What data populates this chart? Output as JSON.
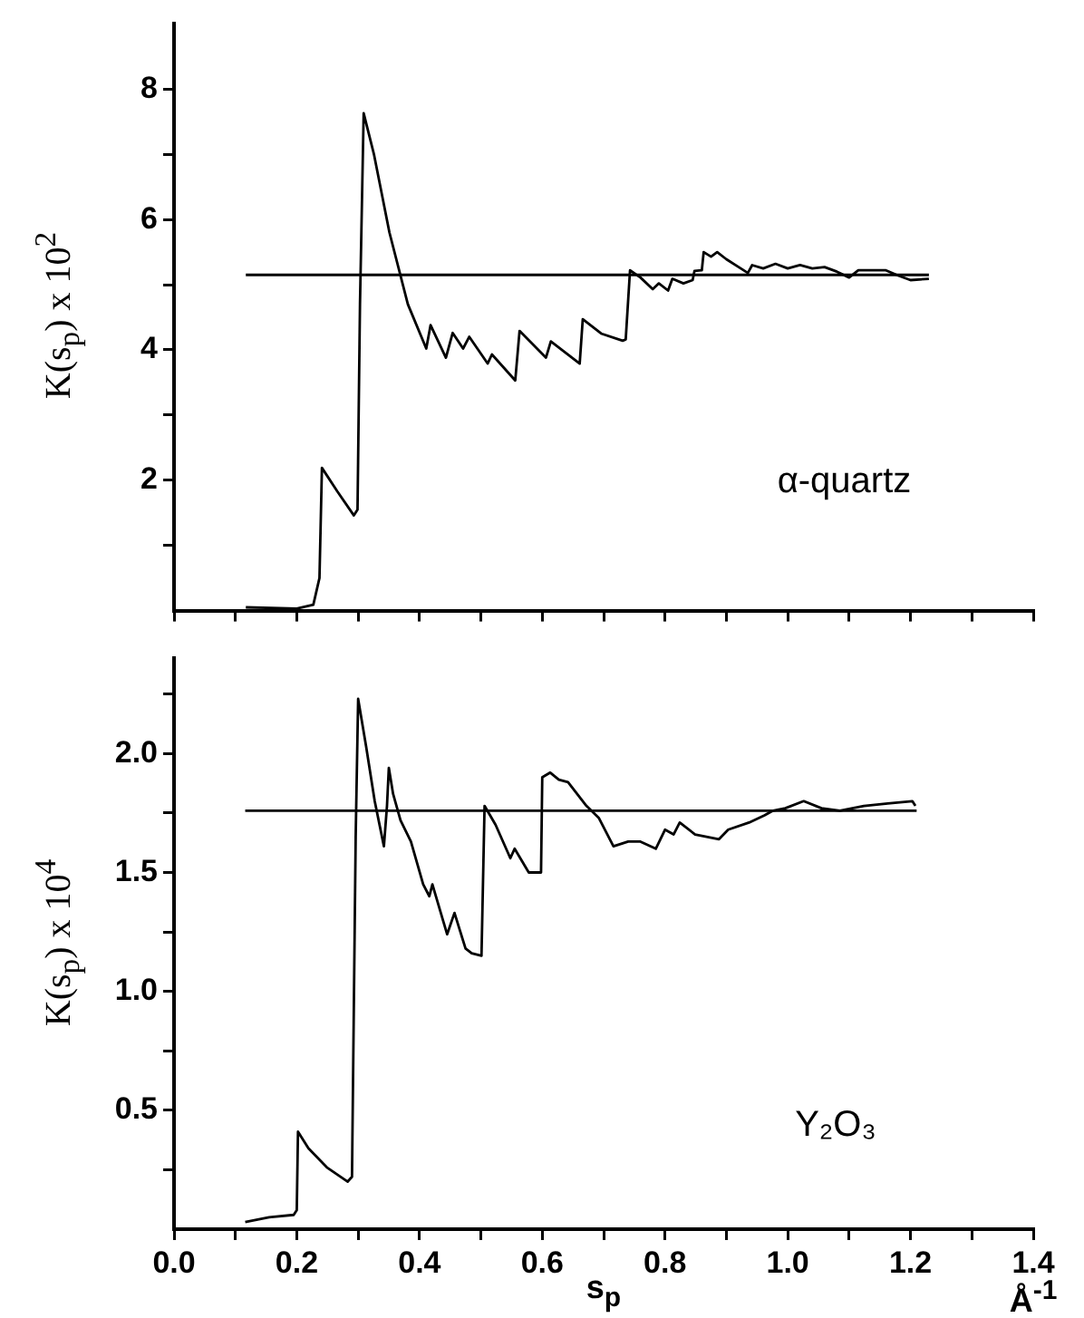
{
  "chart_data": [
    {
      "type": "line",
      "ylabel": "K(s$_{p}$) x 10$^{2}$",
      "annotations": [
        "α-quartz"
      ],
      "xlim": [
        0,
        1.4
      ],
      "ylim": [
        0,
        9
      ],
      "xticks": [
        {
          "value": 0,
          "label": null
        },
        {
          "value": 0.1,
          "label": null
        },
        {
          "value": 0.2,
          "label": null
        },
        {
          "value": 0.3,
          "label": null
        },
        {
          "value": 0.4,
          "label": null
        },
        {
          "value": 0.5,
          "label": null
        },
        {
          "value": 0.6,
          "label": null
        },
        {
          "value": 0.7,
          "label": null
        },
        {
          "value": 0.8,
          "label": null
        },
        {
          "value": 0.9,
          "label": null
        },
        {
          "value": 1.0,
          "label": null
        },
        {
          "value": 1.1,
          "label": null
        },
        {
          "value": 1.2,
          "label": null
        },
        {
          "value": 1.3,
          "label": null
        },
        {
          "value": 1.4,
          "label": null
        }
      ],
      "yticks": [
        {
          "value": 1,
          "label": null
        },
        2,
        {
          "value": 3,
          "label": null
        },
        4,
        {
          "value": 5,
          "label": null
        },
        6,
        {
          "value": 7,
          "label": null
        },
        8
      ],
      "tick_labels": "y",
      "grid": false,
      "legend": false,
      "marker": "none",
      "line_style": "solid",
      "series": [
        {
          "color": "#000000",
          "x": [
            0.117,
            0.2,
            0.227,
            0.237,
            0.241,
            0.266,
            0.293,
            0.299,
            0.303,
            0.309,
            0.326,
            0.351,
            0.381,
            0.411,
            0.418,
            0.443,
            0.454,
            0.471,
            0.481,
            0.511,
            0.518,
            0.556,
            0.563,
            0.606,
            0.614,
            0.661,
            0.666,
            0.696,
            0.731,
            0.736,
            0.743,
            0.76,
            0.78,
            0.79,
            0.805,
            0.812,
            0.83,
            0.845,
            0.848,
            0.86,
            0.863,
            0.875,
            0.885,
            0.9,
            0.92,
            0.935,
            0.942,
            0.96,
            0.98,
            1.0,
            1.02,
            1.04,
            1.06,
            1.08,
            1.1,
            1.115,
            1.16,
            1.18,
            1.2,
            1.23
          ],
          "values": [
            0.05,
            0.03,
            0.09,
            0.5,
            2.19,
            1.83,
            1.46,
            1.55,
            4.7,
            7.63,
            6.99,
            5.8,
            4.7,
            4.02,
            4.38,
            3.88,
            4.26,
            4.02,
            4.2,
            3.79,
            3.93,
            3.53,
            4.29,
            3.88,
            4.13,
            3.79,
            4.47,
            4.25,
            4.14,
            4.16,
            5.22,
            5.11,
            4.93,
            5.02,
            4.91,
            5.09,
            5.02,
            5.07,
            5.21,
            5.22,
            5.5,
            5.43,
            5.5,
            5.39,
            5.27,
            5.18,
            5.3,
            5.25,
            5.32,
            5.25,
            5.3,
            5.25,
            5.27,
            5.2,
            5.11,
            5.22,
            5.22,
            5.14,
            5.07,
            5.09
          ]
        },
        {
          "color": "#000000",
          "x": [
            0.117,
            1.23
          ],
          "values": [
            5.15,
            5.15
          ]
        }
      ]
    },
    {
      "type": "line",
      "xlabel": "s$_{p}$",
      "ylabel": "K(s$_{p}$) x 10$^{4}$",
      "annotations": [
        "Y₂O₃",
        "Å$^{-1}$"
      ],
      "xlim": [
        0,
        1.4
      ],
      "ylim": [
        0,
        2.4
      ],
      "xticks": [
        {
          "value": 0,
          "label": "0.0"
        },
        {
          "value": 0.1,
          "label": null
        },
        0.2,
        {
          "value": 0.3,
          "label": null
        },
        0.4,
        {
          "value": 0.5,
          "label": null
        },
        0.6,
        {
          "value": 0.7,
          "label": null
        },
        0.8,
        {
          "value": 0.9,
          "label": null
        },
        {
          "value": 1.0,
          "label": "1.0"
        },
        {
          "value": 1.1,
          "label": null
        },
        1.2,
        {
          "value": 1.3,
          "label": null
        },
        1.4
      ],
      "yticks": [
        {
          "value": 0.25,
          "label": null
        },
        0.5,
        {
          "value": 0.75,
          "label": null
        },
        {
          "value": 1.0,
          "label": "1.0"
        },
        {
          "value": 1.25,
          "label": null
        },
        1.5,
        {
          "value": 1.75,
          "label": null
        },
        {
          "value": 2.0,
          "label": "2.0"
        },
        {
          "value": 2.25,
          "label": null
        }
      ],
      "grid": false,
      "legend": false,
      "marker": "none",
      "line_style": "solid",
      "series": [
        {
          "color": "#000000",
          "x": [
            0.116,
            0.155,
            0.195,
            0.2,
            0.202,
            0.219,
            0.249,
            0.283,
            0.29,
            0.296,
            0.3,
            0.313,
            0.327,
            0.342,
            0.347,
            0.35,
            0.357,
            0.369,
            0.386,
            0.406,
            0.416,
            0.421,
            0.445,
            0.457,
            0.475,
            0.485,
            0.501,
            0.506,
            0.524,
            0.548,
            0.555,
            0.578,
            0.598,
            0.6,
            0.613,
            0.627,
            0.642,
            0.672,
            0.692,
            0.716,
            0.74,
            0.76,
            0.785,
            0.8,
            0.814,
            0.824,
            0.849,
            0.888,
            0.903,
            0.937,
            0.962,
            0.976,
            0.996,
            1.026,
            1.055,
            1.085,
            1.124,
            1.163,
            1.203,
            1.208
          ],
          "values": [
            0.03,
            0.05,
            0.06,
            0.08,
            0.41,
            0.34,
            0.26,
            0.2,
            0.22,
            1.65,
            2.23,
            2.03,
            1.8,
            1.61,
            1.78,
            1.94,
            1.83,
            1.72,
            1.63,
            1.45,
            1.4,
            1.45,
            1.24,
            1.33,
            1.18,
            1.16,
            1.15,
            1.78,
            1.7,
            1.56,
            1.6,
            1.5,
            1.5,
            1.9,
            1.92,
            1.89,
            1.88,
            1.78,
            1.73,
            1.61,
            1.63,
            1.63,
            1.6,
            1.68,
            1.66,
            1.71,
            1.66,
            1.64,
            1.68,
            1.71,
            1.74,
            1.76,
            1.77,
            1.8,
            1.77,
            1.76,
            1.78,
            1.79,
            1.8,
            1.78
          ]
        },
        {
          "color": "#000000",
          "x": [
            0.116,
            1.21
          ],
          "values": [
            1.76,
            1.76
          ]
        }
      ]
    }
  ]
}
